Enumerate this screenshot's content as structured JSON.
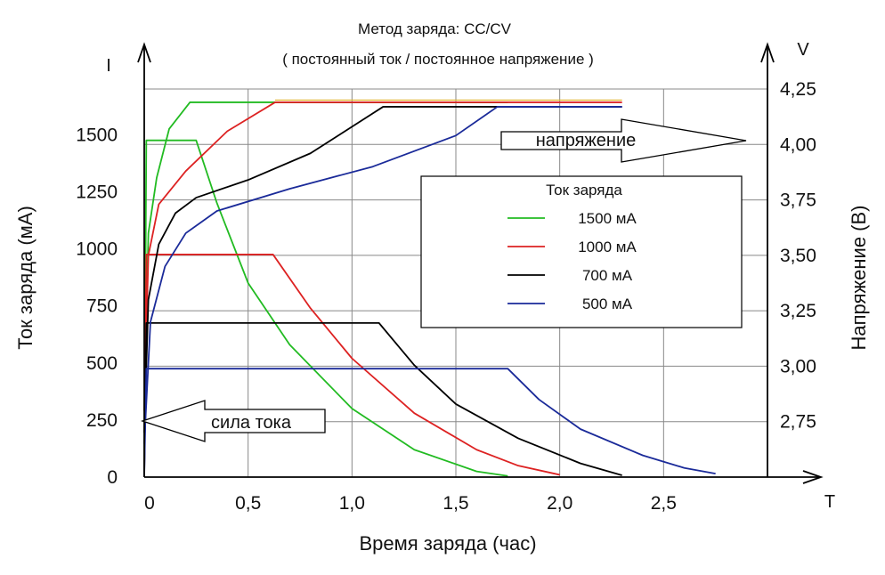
{
  "chart_data": {
    "type": "line",
    "title": "Метод заряда: CC/CV",
    "subtitle": "( постоянный ток / постоянное напряжение )",
    "xlabel": "Время заряда (час)",
    "ylabel": "Ток заряда (мА)",
    "y2label": "Напряжение (В)",
    "x_axis_letter": "T",
    "y_axis_letter": "I",
    "y2_axis_letter": "V",
    "xlim": [
      0,
      3.0
    ],
    "ylim": [
      0,
      1700
    ],
    "y2lim": [
      2.5,
      4.25
    ],
    "x_ticks": [
      "0",
      "0,5",
      "1,0",
      "1,5",
      "2,0",
      "2,5"
    ],
    "x_tick_values": [
      0,
      0.5,
      1.0,
      1.5,
      2.0,
      2.5
    ],
    "y_ticks": [
      "0",
      "250",
      "500",
      "750",
      "1000",
      "1250",
      "1500"
    ],
    "y_tick_values": [
      0,
      250,
      500,
      750,
      1000,
      1250,
      1500
    ],
    "y2_ticks": [
      "2,75",
      "3,00",
      "3,25",
      "3,50",
      "3,75",
      "4,00",
      "4,25"
    ],
    "y2_tick_values": [
      2.75,
      3.0,
      3.25,
      3.5,
      3.75,
      4.0,
      4.25
    ],
    "grid": true,
    "legend_title": "Ток заряда",
    "legend_position": "center-right",
    "annotations": {
      "voltage": "напряжение",
      "current": "сила тока"
    },
    "series": [
      {
        "name": "1500 мА",
        "color": "#22bb22",
        "current": [
          [
            0,
            0
          ],
          [
            0.01,
            1475
          ],
          [
            0.25,
            1475
          ],
          [
            0.35,
            1200
          ],
          [
            0.5,
            850
          ],
          [
            0.7,
            580
          ],
          [
            1.0,
            300
          ],
          [
            1.3,
            120
          ],
          [
            1.6,
            25
          ],
          [
            1.75,
            5
          ]
        ],
        "voltage": [
          [
            0,
            2.8
          ],
          [
            0.02,
            3.6
          ],
          [
            0.06,
            3.85
          ],
          [
            0.12,
            4.07
          ],
          [
            0.22,
            4.19
          ],
          [
            0.6,
            4.19
          ],
          [
            1.75,
            4.19
          ]
        ]
      },
      {
        "name": "1000 мА",
        "color": "#dd2222",
        "current": [
          [
            0,
            0
          ],
          [
            0.01,
            975
          ],
          [
            0.62,
            975
          ],
          [
            0.8,
            740
          ],
          [
            1.0,
            520
          ],
          [
            1.3,
            280
          ],
          [
            1.6,
            120
          ],
          [
            1.8,
            50
          ],
          [
            2.0,
            10
          ]
        ],
        "voltage": [
          [
            0,
            2.8
          ],
          [
            0.02,
            3.5
          ],
          [
            0.07,
            3.73
          ],
          [
            0.2,
            3.88
          ],
          [
            0.4,
            4.06
          ],
          [
            0.63,
            4.19
          ],
          [
            2.3,
            4.19
          ]
        ]
      },
      {
        "name": "700 мА",
        "color": "#000000",
        "current": [
          [
            0,
            0
          ],
          [
            0.01,
            675
          ],
          [
            1.13,
            675
          ],
          [
            1.3,
            490
          ],
          [
            1.5,
            320
          ],
          [
            1.8,
            170
          ],
          [
            2.1,
            60
          ],
          [
            2.3,
            8
          ]
        ],
        "voltage": [
          [
            0,
            2.7
          ],
          [
            0.02,
            3.3
          ],
          [
            0.07,
            3.55
          ],
          [
            0.15,
            3.69
          ],
          [
            0.25,
            3.76
          ],
          [
            0.5,
            3.84
          ],
          [
            0.8,
            3.96
          ],
          [
            1.15,
            4.17
          ],
          [
            2.3,
            4.17
          ]
        ]
      },
      {
        "name": "500 мА",
        "color": "#1a2a99",
        "current": [
          [
            0,
            0
          ],
          [
            0.01,
            475
          ],
          [
            1.75,
            475
          ],
          [
            1.9,
            340
          ],
          [
            2.1,
            210
          ],
          [
            2.4,
            95
          ],
          [
            2.6,
            40
          ],
          [
            2.75,
            15
          ]
        ],
        "voltage": [
          [
            0,
            2.65
          ],
          [
            0.03,
            3.2
          ],
          [
            0.1,
            3.45
          ],
          [
            0.2,
            3.6
          ],
          [
            0.35,
            3.7
          ],
          [
            0.7,
            3.8
          ],
          [
            1.1,
            3.9
          ],
          [
            1.5,
            4.04
          ],
          [
            1.7,
            4.17
          ],
          [
            2.3,
            4.17
          ]
        ]
      }
    ]
  },
  "colors": {
    "axis": "#000000",
    "grid": "#888888",
    "yellow_trace": "#e0b020",
    "background": "#ffffff"
  }
}
